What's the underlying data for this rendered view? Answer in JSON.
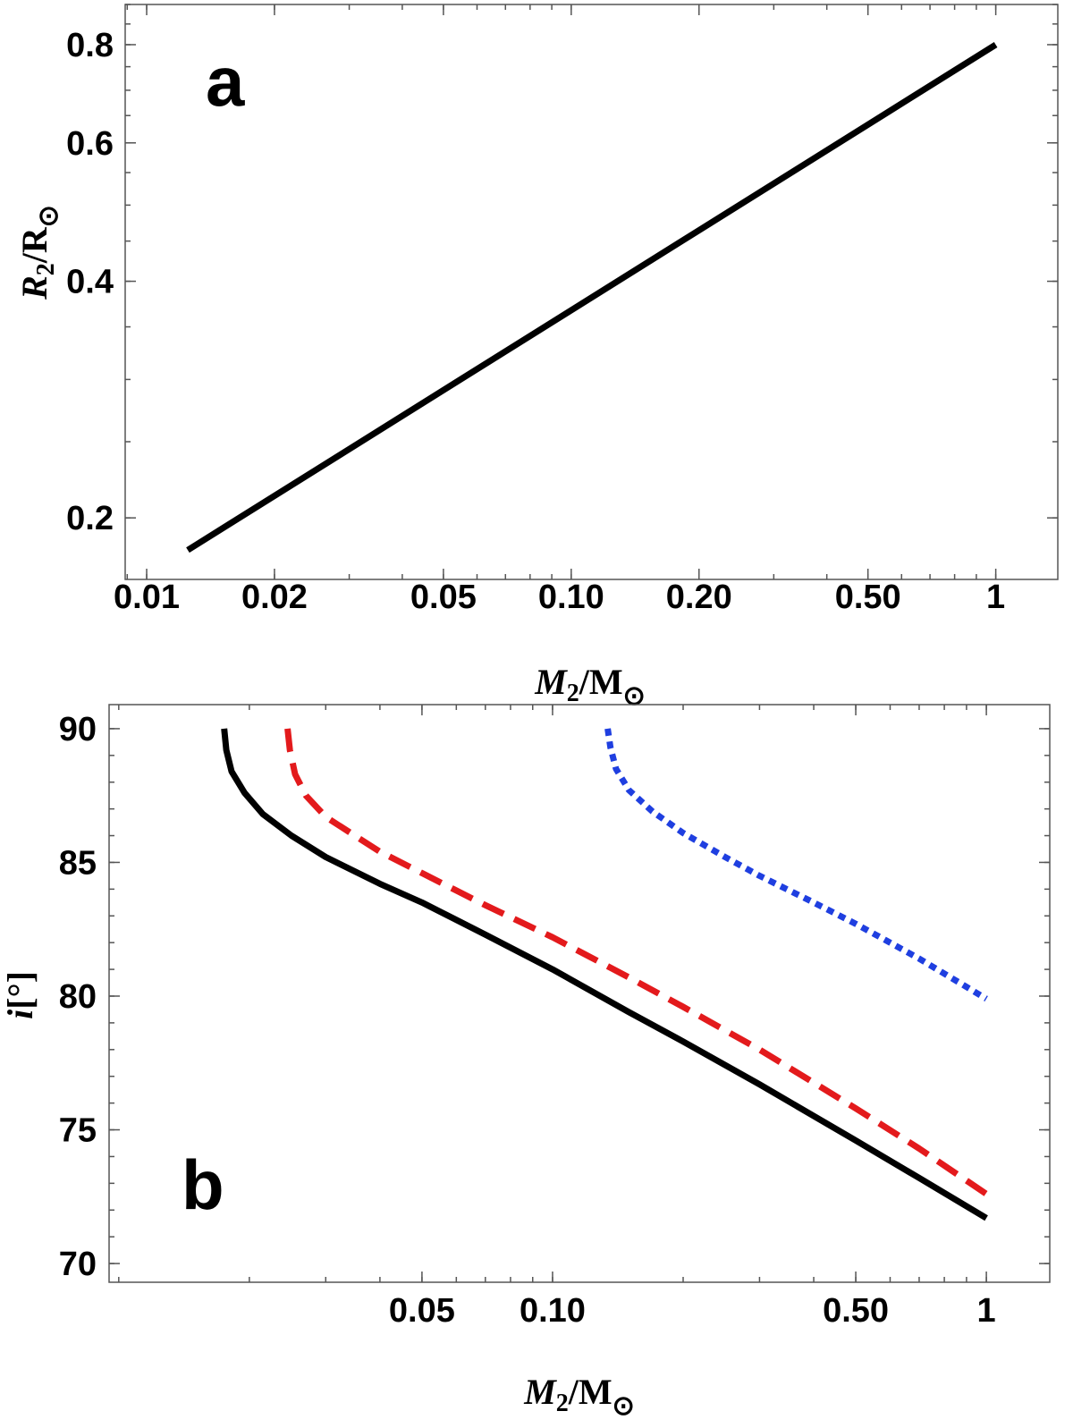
{
  "chart_data": [
    {
      "type": "line",
      "panel_label": "a",
      "xscale": "log",
      "yscale": "log",
      "xlim": [
        0.0089,
        1.4
      ],
      "ylim": [
        0.167,
        0.9
      ],
      "xticks": [
        0.01,
        0.02,
        0.05,
        0.1,
        0.2,
        0.5,
        1
      ],
      "xtick_labels": [
        "0.01",
        "0.02",
        "0.05",
        "0.10",
        "0.20",
        "0.50",
        "1"
      ],
      "yticks": [
        0.2,
        0.4,
        0.6,
        0.8
      ],
      "ytick_labels": [
        "0.2",
        "0.4",
        "0.6",
        "0.8"
      ],
      "xlabel": {
        "main": "M",
        "sub": "2",
        "rest": "/M",
        "rest_sub": "⊙"
      },
      "ylabel": {
        "main": "R",
        "sub": "2",
        "rest": "/R",
        "rest_sub": "⊙"
      },
      "series": [
        {
          "style": "solid",
          "color": "#000000",
          "x": [
            0.0125,
            1.0
          ],
          "y": [
            0.182,
            0.8
          ]
        }
      ]
    },
    {
      "type": "line",
      "panel_label": "b",
      "xscale": "log",
      "yscale": "linear",
      "xlim": [
        0.0095,
        1.4
      ],
      "ylim": [
        69.3,
        90.9
      ],
      "xticks": [
        0.05,
        0.1,
        0.5,
        1
      ],
      "xtick_labels": [
        "0.05",
        "0.10",
        "0.50",
        "1"
      ],
      "yticks": [
        70,
        75,
        80,
        85,
        90
      ],
      "ytick_labels": [
        "70",
        "75",
        "80",
        "85",
        "90"
      ],
      "xlabel": {
        "main": "M",
        "sub": "2",
        "rest": "/M",
        "rest_sub": "⊙"
      },
      "ylabel": {
        "main": "i",
        "rest": "[°]"
      },
      "series": [
        {
          "style": "solid",
          "color": "#000000",
          "x": [
            0.0175,
            0.0177,
            0.0182,
            0.0195,
            0.0215,
            0.025,
            0.03,
            0.04,
            0.05,
            0.07,
            0.1,
            0.15,
            0.2,
            0.3,
            0.5,
            0.7,
            1.0
          ],
          "y": [
            90,
            89.2,
            88.4,
            87.6,
            86.8,
            86.0,
            85.2,
            84.2,
            83.5,
            82.3,
            81.0,
            79.4,
            78.3,
            76.7,
            74.6,
            73.2,
            71.7
          ]
        },
        {
          "style": "dashed",
          "color": "#e31a1c",
          "x": [
            0.0245,
            0.0248,
            0.0255,
            0.027,
            0.03,
            0.035,
            0.04,
            0.05,
            0.07,
            0.1,
            0.15,
            0.2,
            0.3,
            0.5,
            0.7,
            1.0
          ],
          "y": [
            90,
            89.2,
            88.3,
            87.5,
            86.7,
            86.0,
            85.4,
            84.6,
            83.4,
            82.2,
            80.7,
            79.6,
            78.0,
            75.8,
            74.3,
            72.6
          ]
        },
        {
          "style": "dotted",
          "color": "#1f3fe0",
          "x": [
            0.134,
            0.136,
            0.14,
            0.15,
            0.17,
            0.2,
            0.25,
            0.3,
            0.4,
            0.5,
            0.7,
            1.0
          ],
          "y": [
            90,
            89.3,
            88.5,
            87.7,
            86.9,
            86.1,
            85.2,
            84.5,
            83.5,
            82.7,
            81.4,
            79.9
          ]
        }
      ]
    }
  ]
}
